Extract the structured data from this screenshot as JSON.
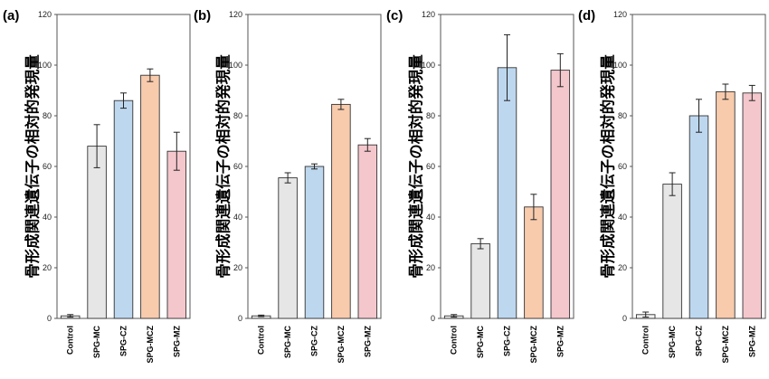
{
  "chart_data": [
    {
      "type": "bar",
      "panel_label": "(a)",
      "ylabel": "骨形成関連遺伝子の相対的発現量",
      "ylim": [
        0,
        120
      ],
      "yticks": [
        0,
        20,
        40,
        60,
        80,
        100,
        120
      ],
      "categories": [
        "Control",
        "SPG-MC",
        "SPG-CZ",
        "SPG-MCZ",
        "SPG-MZ"
      ],
      "values": [
        1,
        68,
        86,
        96,
        66
      ],
      "errors": [
        0.5,
        8.5,
        3,
        2.5,
        7.5
      ],
      "bar_colors": [
        "#f2f2f2",
        "#e6e6e6",
        "#bdd7ee",
        "#f8cbad",
        "#f4c7cc"
      ]
    },
    {
      "type": "bar",
      "panel_label": "(b)",
      "ylabel": "骨形成関連遺伝子の相対的発現量",
      "ylim": [
        0,
        120
      ],
      "yticks": [
        0,
        20,
        40,
        60,
        80,
        100,
        120
      ],
      "categories": [
        "Control",
        "SPG-MC",
        "SPG-CZ",
        "SPG-MCZ",
        "SPG-MZ"
      ],
      "values": [
        1,
        55.5,
        60,
        84.5,
        68.5
      ],
      "errors": [
        0.3,
        2,
        1,
        2,
        2.5
      ],
      "bar_colors": [
        "#f2f2f2",
        "#e6e6e6",
        "#bdd7ee",
        "#f8cbad",
        "#f4c7cc"
      ]
    },
    {
      "type": "bar",
      "panel_label": "(c)",
      "ylabel": "骨形成関連遺伝子の相対的発現量",
      "ylim": [
        0,
        120
      ],
      "yticks": [
        0,
        20,
        40,
        60,
        80,
        100,
        120
      ],
      "categories": [
        "Control",
        "SPG-MC",
        "SPG-CZ",
        "SPG-MCZ",
        "SPG-MZ"
      ],
      "values": [
        1,
        29.5,
        99,
        44,
        98
      ],
      "errors": [
        0.5,
        2,
        13,
        5,
        6.5
      ],
      "bar_colors": [
        "#f2f2f2",
        "#e6e6e6",
        "#bdd7ee",
        "#f8cbad",
        "#f4c7cc"
      ]
    },
    {
      "type": "bar",
      "panel_label": "(d)",
      "ylabel": "骨形成関連遺伝子の相対的発現量",
      "ylim": [
        0,
        120
      ],
      "yticks": [
        0,
        20,
        40,
        60,
        80,
        100,
        120
      ],
      "categories": [
        "Control",
        "SPG-MC",
        "SPG-CZ",
        "SPG-MCZ",
        "SPG-MZ"
      ],
      "values": [
        1.5,
        53,
        80,
        89.5,
        89
      ],
      "errors": [
        1,
        4.5,
        6.5,
        3,
        3
      ],
      "bar_colors": [
        "#f2f2f2",
        "#e6e6e6",
        "#bdd7ee",
        "#f8cbad",
        "#f4c7cc"
      ]
    }
  ]
}
